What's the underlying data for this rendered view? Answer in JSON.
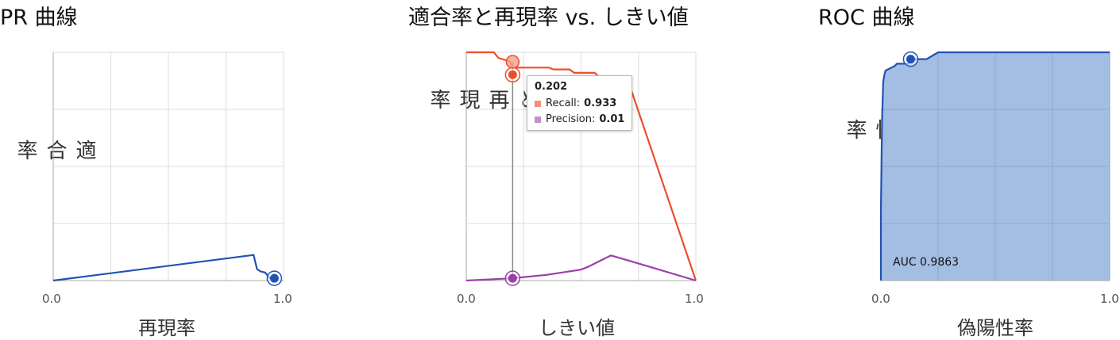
{
  "colors": {
    "blue": "#2152b3",
    "orange": "#ee4d2d",
    "purple": "#9b3fa9",
    "roc_fill": "#a4bde3",
    "grid": "#dddddd",
    "axis": "#aaaaaa"
  },
  "chart_data": [
    {
      "type": "line",
      "title": "PR 曲線",
      "xlabel": "再現率",
      "ylabel": "適合率",
      "xlim": [
        0,
        1
      ],
      "ylim": [
        0,
        1
      ],
      "x_ticks": [
        "0.0",
        "1.0"
      ],
      "grid": true,
      "series": [
        {
          "x": [
            0.0,
            0.87,
            0.875,
            0.885,
            0.9,
            0.92,
            0.94,
            0.96
          ],
          "y": [
            0.0,
            0.112,
            0.09,
            0.05,
            0.04,
            0.035,
            0.01,
            0.01
          ]
        }
      ],
      "marker": {
        "x": 0.96,
        "y": 0.01
      }
    },
    {
      "type": "line",
      "title": "適合率と再現率 vs. しきい値",
      "xlabel": "しきい値",
      "ylabel": "適合率と再現率",
      "xlim": [
        0,
        1
      ],
      "ylim": [
        0,
        1
      ],
      "x_ticks": [
        "0.0",
        "1.0"
      ],
      "grid": true,
      "series": [
        {
          "name": "Recall",
          "x": [
            0.0,
            0.12,
            0.14,
            0.19,
            0.2,
            0.22,
            0.36,
            0.38,
            0.45,
            0.47,
            0.56,
            0.58,
            0.7,
            1.0
          ],
          "y": [
            1.0,
            1.0,
            0.975,
            0.96,
            0.933,
            0.933,
            0.933,
            0.925,
            0.925,
            0.91,
            0.91,
            0.89,
            0.89,
            0.0
          ]
        },
        {
          "name": "Precision",
          "x": [
            0.0,
            0.2,
            0.35,
            0.5,
            0.53,
            0.6,
            0.63,
            0.75,
            1.0
          ],
          "y": [
            0.0,
            0.01,
            0.025,
            0.048,
            0.06,
            0.095,
            0.11,
            0.075,
            0.0
          ]
        }
      ],
      "cursor_x": 0.202,
      "tooltip": {
        "threshold": "0.202",
        "recall_label": "Recall:",
        "recall_value": "0.933",
        "precision_label": "Precision:",
        "precision_value": "0.01"
      }
    },
    {
      "type": "area",
      "title": "ROC 曲線",
      "xlabel": "偽陽性率",
      "ylabel": "真陽性率",
      "xlim": [
        0,
        1
      ],
      "ylim": [
        0,
        1
      ],
      "x_ticks": [
        "0.0",
        "1.0"
      ],
      "grid": true,
      "annotation": "AUC 0.9863",
      "series": [
        {
          "x": [
            0.0,
            0.0,
            0.005,
            0.01,
            0.015,
            0.02,
            0.06,
            0.07,
            0.12,
            0.13,
            0.2,
            0.25,
            1.0
          ],
          "y": [
            0.0,
            0.3,
            0.7,
            0.87,
            0.9,
            0.92,
            0.94,
            0.95,
            0.95,
            0.97,
            0.97,
            1.0,
            1.0
          ]
        }
      ],
      "marker": {
        "x": 0.13,
        "y": 0.97
      }
    }
  ]
}
